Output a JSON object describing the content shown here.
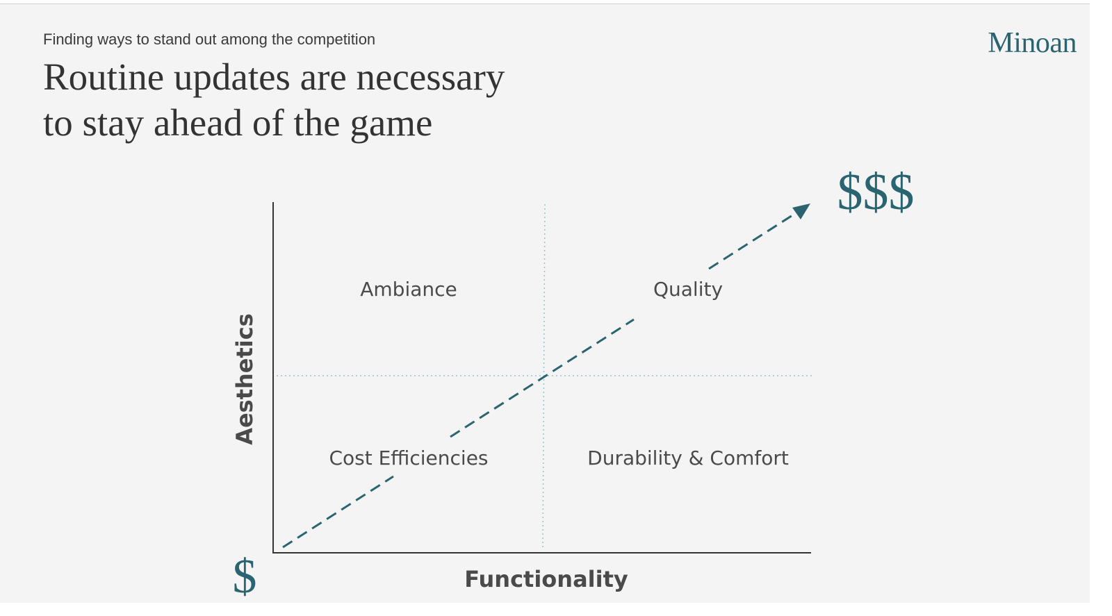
{
  "header": {
    "eyebrow": "Finding ways to stand out among the competition",
    "title_line1": "Routine updates are necessary",
    "title_line2": "to stay ahead of the game",
    "brand": "Minoan"
  },
  "diagram": {
    "y_axis_label": "Aesthetics",
    "x_axis_label": "Functionality",
    "quadrants": {
      "top_left": "Ambiance",
      "top_right": "Quality",
      "bottom_left": "Cost Efficiencies",
      "bottom_right": "Durability & Comfort"
    },
    "low_cost_label": "$",
    "high_cost_label": "$$$",
    "colors": {
      "accent": "#2a6470",
      "axis": "#333333",
      "divider": "#8cc8c8"
    }
  }
}
